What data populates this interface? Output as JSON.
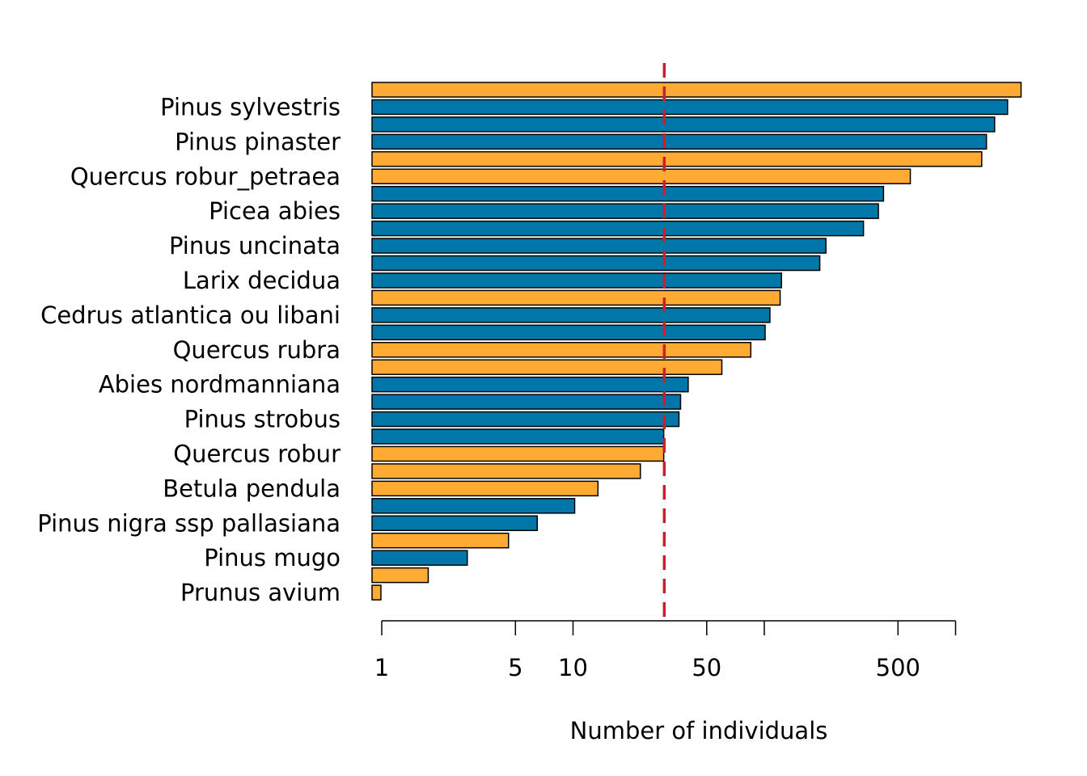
{
  "chart_data": {
    "type": "bar",
    "orientation": "horizontal",
    "x_scale": "log",
    "xlabel": "Number of individuals",
    "title": "",
    "ylabel": "",
    "xlim": [
      0.9,
      2500
    ],
    "x_ticks": [
      1,
      5,
      10,
      50,
      100,
      500,
      1000
    ],
    "x_tick_labels": [
      "1",
      "5",
      "10",
      "50",
      "",
      "500",
      ""
    ],
    "reference_line": {
      "value": 30,
      "color": "#c8202f",
      "style": "dashed"
    },
    "colors": {
      "A": "#ffab33",
      "B": "#0077a8"
    },
    "bars": [
      {
        "value": 2200,
        "group": "A",
        "label": ""
      },
      {
        "value": 1870,
        "group": "B",
        "label": "Pinus sylvestris"
      },
      {
        "value": 1600,
        "group": "B",
        "label": ""
      },
      {
        "value": 1450,
        "group": "B",
        "label": "Pinus pinaster"
      },
      {
        "value": 1370,
        "group": "A",
        "label": ""
      },
      {
        "value": 580,
        "group": "A",
        "label": "Quercus robur_petraea"
      },
      {
        "value": 420,
        "group": "B",
        "label": ""
      },
      {
        "value": 395,
        "group": "B",
        "label": "Picea abies"
      },
      {
        "value": 330,
        "group": "B",
        "label": ""
      },
      {
        "value": 210,
        "group": "B",
        "label": "Pinus uncinata"
      },
      {
        "value": 195,
        "group": "B",
        "label": ""
      },
      {
        "value": 123,
        "group": "B",
        "label": "Larix decidua"
      },
      {
        "value": 121,
        "group": "A",
        "label": ""
      },
      {
        "value": 107,
        "group": "B",
        "label": "Cedrus atlantica ou libani"
      },
      {
        "value": 101,
        "group": "B",
        "label": ""
      },
      {
        "value": 85,
        "group": "A",
        "label": "Quercus rubra"
      },
      {
        "value": 60,
        "group": "A",
        "label": ""
      },
      {
        "value": 40,
        "group": "B",
        "label": "Abies nordmanniana"
      },
      {
        "value": 36.5,
        "group": "B",
        "label": ""
      },
      {
        "value": 35.8,
        "group": "B",
        "label": "Pinus strobus"
      },
      {
        "value": 29.8,
        "group": "B",
        "label": ""
      },
      {
        "value": 29.8,
        "group": "A",
        "label": "Quercus robur"
      },
      {
        "value": 22.5,
        "group": "A",
        "label": ""
      },
      {
        "value": 13.5,
        "group": "A",
        "label": "Betula pendula"
      },
      {
        "value": 10.2,
        "group": "B",
        "label": ""
      },
      {
        "value": 6.5,
        "group": "B",
        "label": "Pinus nigra ssp pallasiana"
      },
      {
        "value": 4.6,
        "group": "A",
        "label": ""
      },
      {
        "value": 2.8,
        "group": "B",
        "label": "Pinus mugo"
      },
      {
        "value": 1.75,
        "group": "A",
        "label": ""
      },
      {
        "value": 0.99,
        "group": "A",
        "label": "Prunus avium"
      }
    ]
  }
}
